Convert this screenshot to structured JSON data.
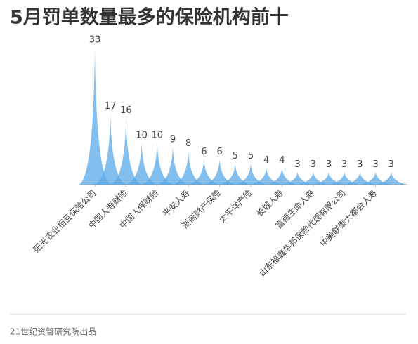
{
  "chart_data": {
    "type": "spike",
    "title": "5月罚单数量最多的保险机构前十",
    "categories": [
      "阳光农业相互保险公司",
      null,
      "中国人寿财险",
      null,
      "中国人保财险",
      null,
      "平安人寿",
      null,
      "浙商财产保险",
      null,
      "太平洋产险",
      null,
      "长城人寿",
      null,
      "富德生命人寿",
      null,
      "山东福鑫华邦保险代理有限公司",
      null,
      "中美联泰大都会人寿",
      null
    ],
    "values": [
      33,
      17,
      16,
      10,
      10,
      9,
      8,
      6,
      6,
      5,
      5,
      4,
      4,
      3,
      3,
      3,
      3,
      3,
      3,
      3
    ],
    "color": "#5aaae8",
    "source": "21世纪资管研究院出品"
  }
}
